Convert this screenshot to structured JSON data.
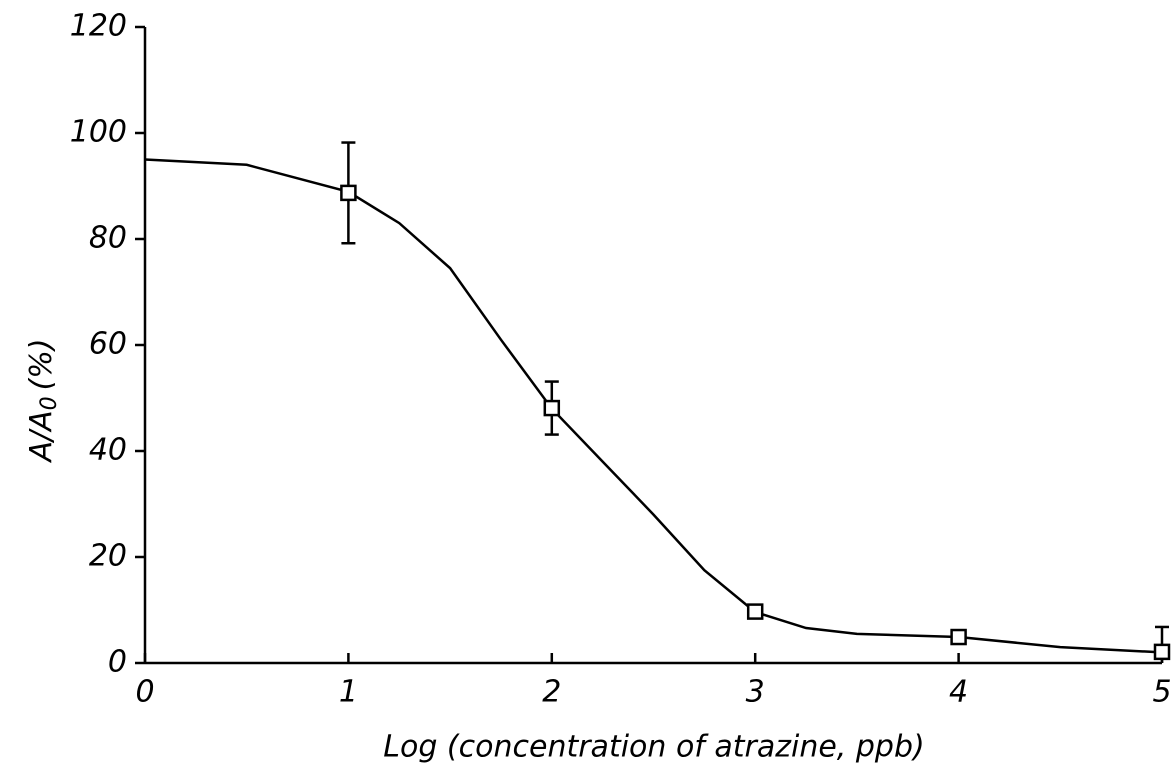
{
  "chart_data": {
    "type": "scatter",
    "x_label": "Log (concentration of atrazine, ppb)",
    "y_label": {
      "text": "A/A",
      "subscript": "0",
      "suffix": "(%)"
    },
    "xlim": [
      0,
      5
    ],
    "xticks": [
      0,
      1,
      2,
      3,
      4,
      5
    ],
    "ylim": [
      0,
      120
    ],
    "yticks": [
      0,
      20,
      40,
      60,
      80,
      100,
      120
    ],
    "series": [
      {
        "kind": "points",
        "color": "#000000",
        "x": [
          1,
          2,
          3,
          4,
          5
        ],
        "values": [
          88.7,
          48.1,
          9.7,
          4.9,
          2.1
        ],
        "errors": [
          9.5,
          5,
          0,
          0,
          4.7
        ]
      },
      {
        "kind": "curve",
        "color": "#000000",
        "x": [
          0,
          0.5,
          1,
          1.25,
          1.5,
          1.75,
          2,
          2.25,
          2.5,
          2.75,
          3,
          3.25,
          3.5,
          4,
          4.5,
          5
        ],
        "values": [
          95,
          94,
          88.9,
          83,
          74.5,
          61,
          48,
          38,
          28,
          17.5,
          9.6,
          6.6,
          5.5,
          4.9,
          3,
          2
        ]
      }
    ]
  }
}
